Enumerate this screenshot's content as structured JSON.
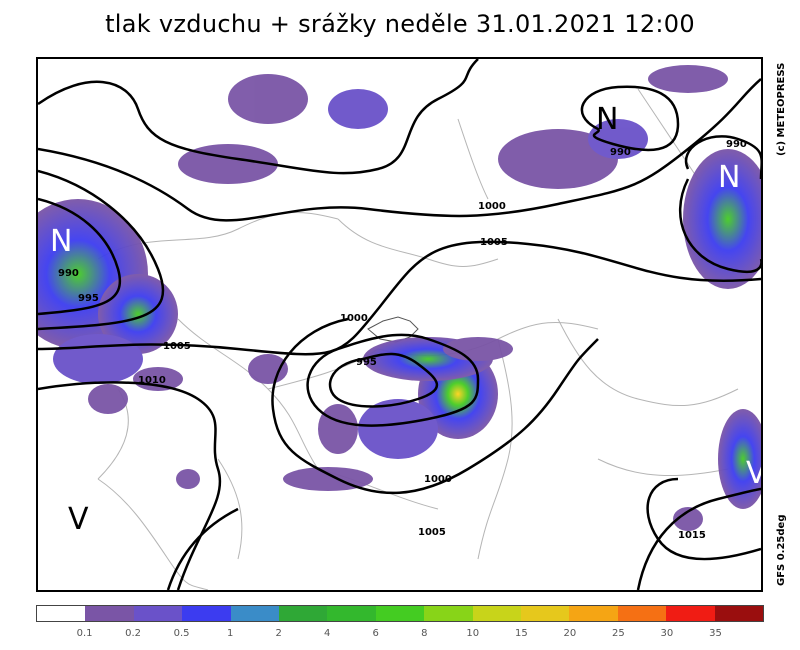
{
  "title": "tlak vzduchu + srážky  neděle 31.01.2021 12:00",
  "credits": {
    "copyright": "(c) METEOPRESS",
    "model": "GFS 0.25deg"
  },
  "map": {
    "isobar_labels": [
      "990",
      "990",
      "990",
      "995",
      "1000",
      "1005",
      "1005",
      "1010",
      "1000",
      "995",
      "1000",
      "1005",
      "1015"
    ],
    "pressure_centers": [
      "N",
      "N",
      "N",
      "N",
      "V",
      "V"
    ]
  },
  "legend": {
    "ticks": [
      "0.1",
      "0.2",
      "0.5",
      "1",
      "2",
      "4",
      "6",
      "8",
      "10",
      "15",
      "20",
      "25",
      "30",
      "35"
    ],
    "colors": [
      "#ffffff",
      "#7a55a6",
      "#6a52c9",
      "#3c3cf0",
      "#3a8cc8",
      "#2fa836",
      "#33b82d",
      "#44cc22",
      "#88d418",
      "#c8d41a",
      "#e6c81c",
      "#f5a514",
      "#f57014",
      "#f01c14",
      "#9a0e0e"
    ]
  }
}
